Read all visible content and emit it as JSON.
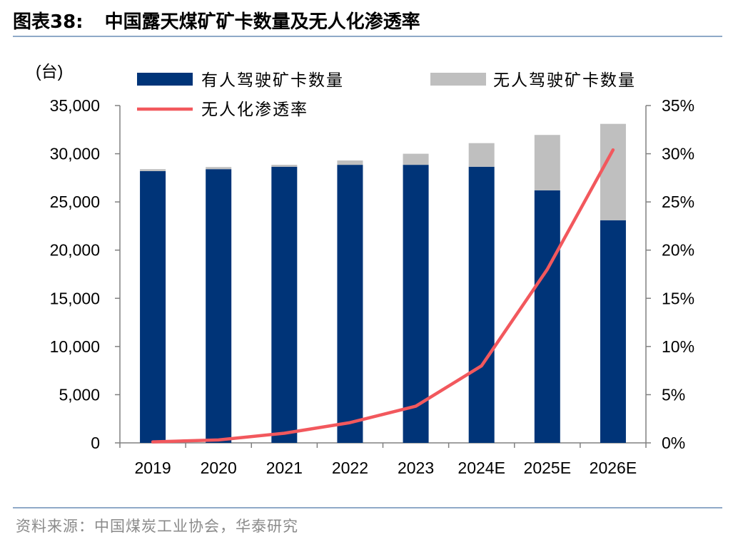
{
  "header": {
    "figure_number": "图表38:",
    "title": "中国露天煤矿矿卡数量及无人化渗透率"
  },
  "footer": {
    "source": "资料来源：中国煤炭工业协会，华泰研究"
  },
  "colors": {
    "manned": "#003478",
    "unmanned": "#bfbfbf",
    "rate_line": "#f2585d",
    "rule": "#8fa9c8"
  },
  "chart_data": {
    "type": "bar",
    "stacked": true,
    "y_unit_label": "(台)",
    "categories": [
      "2019",
      "2020",
      "2021",
      "2022",
      "2023",
      "2024E",
      "2025E",
      "2026E"
    ],
    "series": [
      {
        "name": "有人驾驶矿卡数量",
        "type": "bar",
        "axis": "left",
        "values": [
          28200,
          28400,
          28650,
          28850,
          28850,
          28650,
          26200,
          23100
        ]
      },
      {
        "name": "无人驾驶矿卡数量",
        "type": "bar",
        "axis": "left",
        "values": [
          200,
          220,
          200,
          450,
          1150,
          2450,
          5750,
          10000
        ]
      },
      {
        "name": "无人化渗透率",
        "type": "line",
        "axis": "right",
        "values": [
          0.1,
          0.3,
          1.0,
          2.1,
          3.8,
          8.0,
          18.0,
          30.4
        ]
      }
    ],
    "y_left": {
      "min": 0,
      "max": 35000,
      "step": 5000,
      "tick_labels": [
        "0",
        "5,000",
        "10,000",
        "15,000",
        "20,000",
        "25,000",
        "30,000",
        "35,000"
      ]
    },
    "y_right": {
      "min": 0,
      "max": 35,
      "step": 5,
      "tick_labels": [
        "0%",
        "5%",
        "10%",
        "15%",
        "20%",
        "25%",
        "30%",
        "35%"
      ]
    },
    "grid": false,
    "legend_position": "top"
  }
}
